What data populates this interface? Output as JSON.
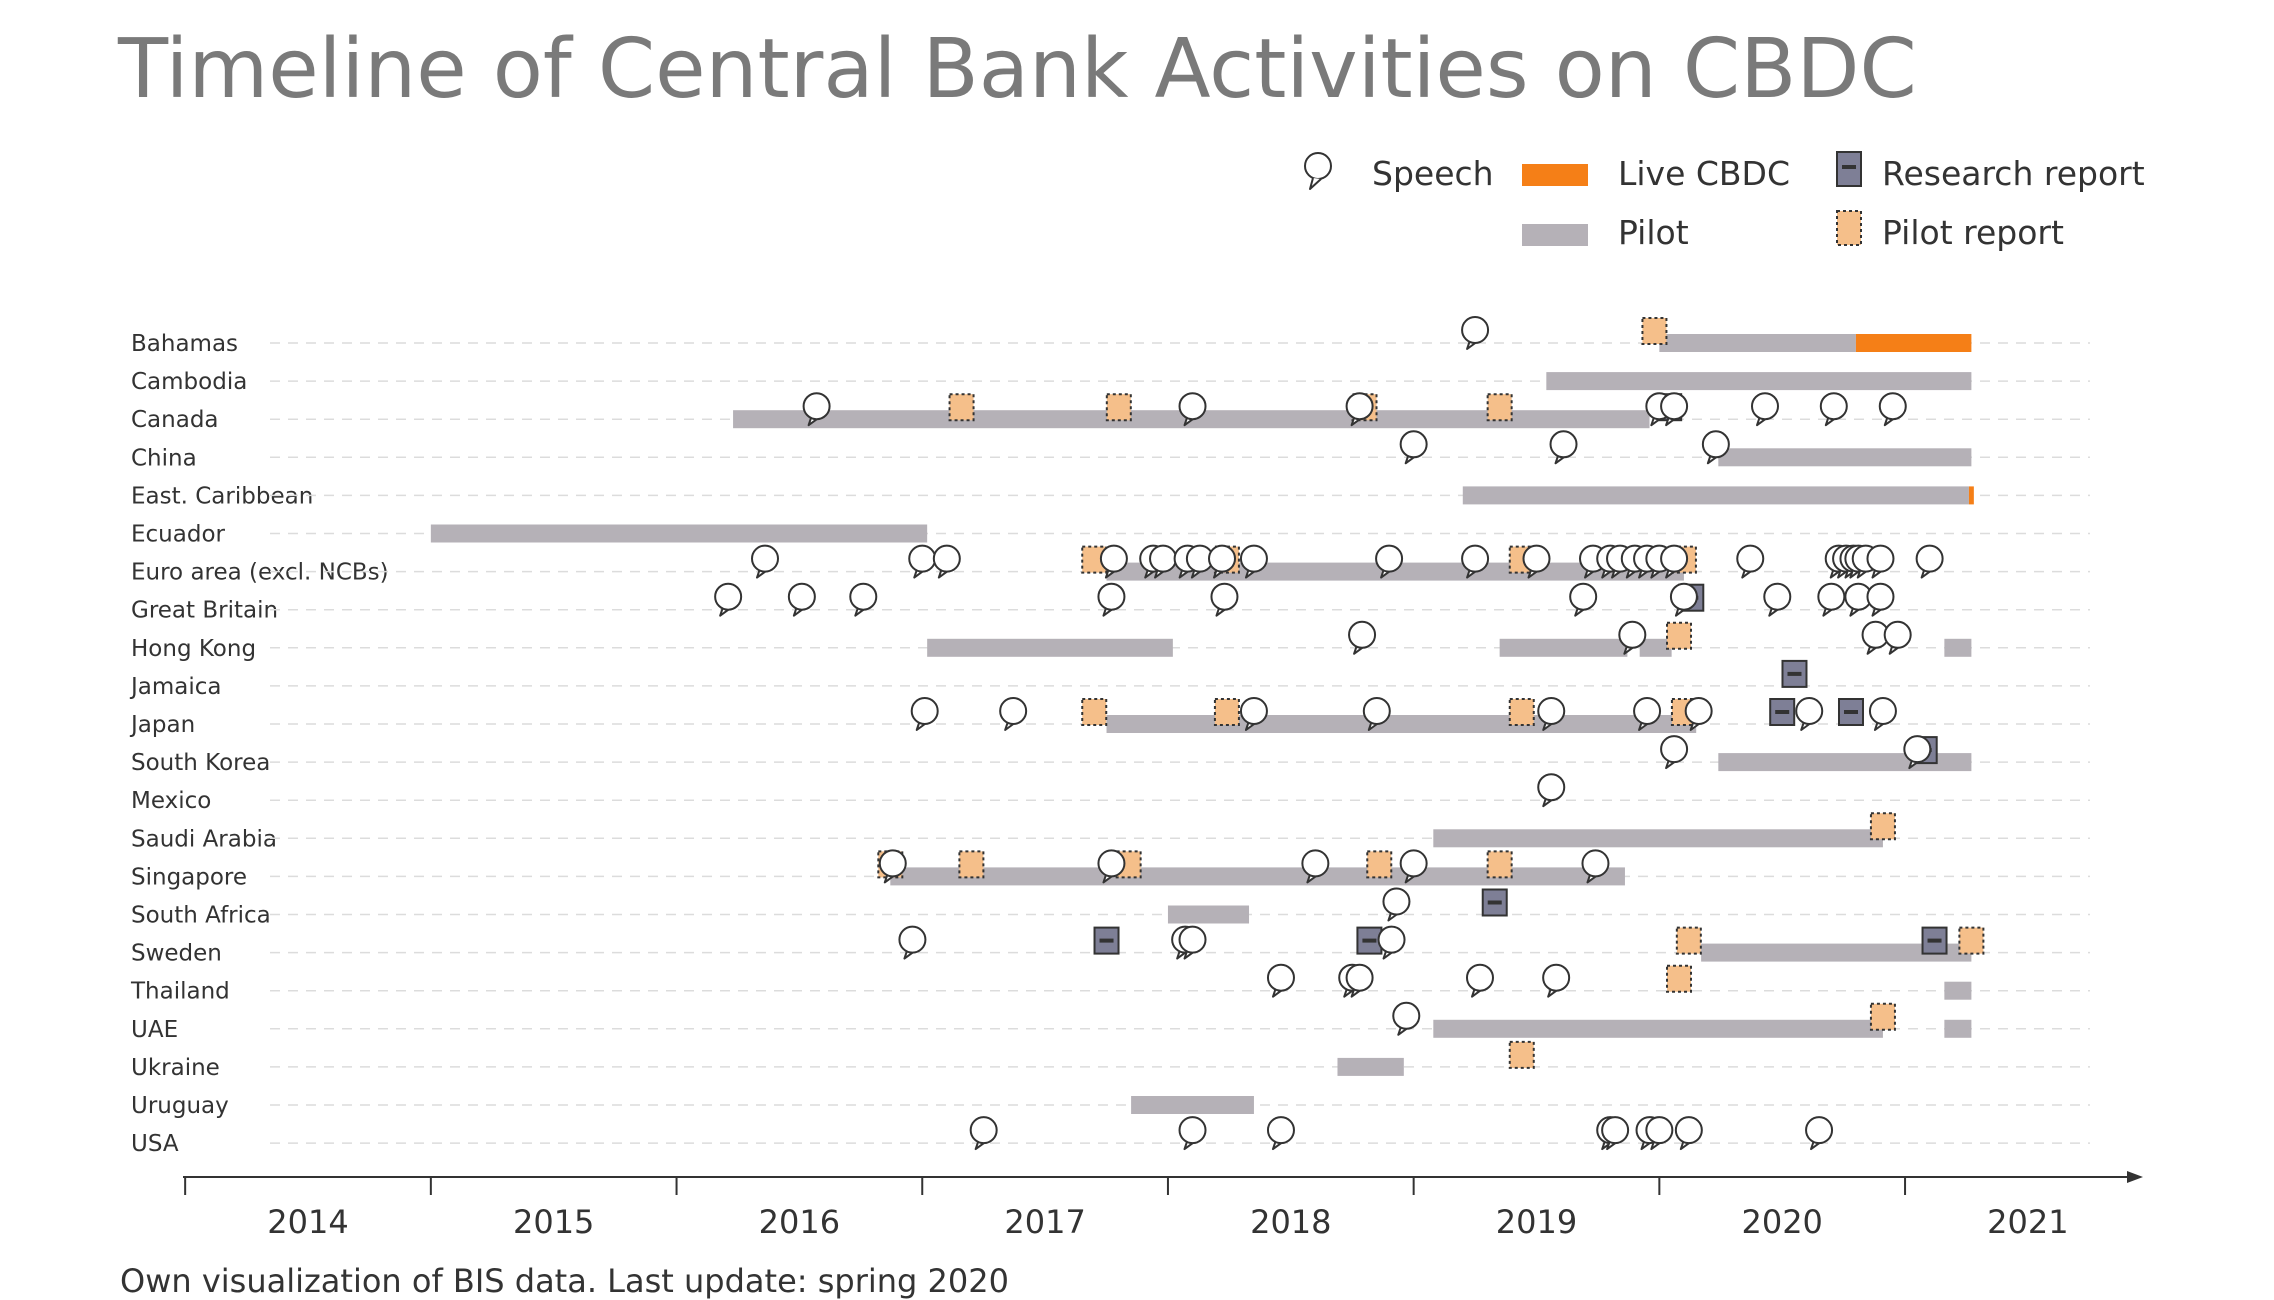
{
  "title": "Timeline of Central Bank Activities on CBDC",
  "footer": "Own visualization of BIS data. Last update: spring 2020",
  "legend": {
    "speech": "Speech",
    "live": "Live CBDC",
    "research": "Research report",
    "pilot": "Pilot",
    "pilot_report": "Pilot report"
  },
  "colors": {
    "live": "#f57f17",
    "pilot": "#b5b1b7",
    "research_fill": "#7e7f96",
    "pilot_report_fill": "#f5bf8a",
    "marker_stroke": "#333333",
    "title": "#7a7a7a"
  },
  "chart_data": {
    "type": "timeline",
    "x_range": [
      2013.5,
      2021.0
    ],
    "x_ticks": [
      "2014",
      "2015",
      "2016",
      "2017",
      "2018",
      "2019",
      "2020",
      "2021"
    ],
    "rows": [
      {
        "label": "Bahamas",
        "pilot": [
          [
            2019.5,
            2020.3
          ]
        ],
        "live": [
          [
            2020.3,
            2020.77
          ]
        ],
        "speech": [
          2018.75
        ],
        "research": [],
        "pilot_report": [
          2019.48
        ]
      },
      {
        "label": "Cambodia",
        "pilot": [
          [
            2019.04,
            2020.77
          ]
        ],
        "live": [],
        "speech": [],
        "research": [],
        "pilot_report": []
      },
      {
        "label": "Canada",
        "pilot": [
          [
            2015.73,
            2019.46
          ]
        ],
        "live": [],
        "speech": [
          2016.07,
          2017.6,
          2018.28,
          2019.5,
          2019.56,
          2019.93,
          2020.21,
          2020.45
        ],
        "research": [
          2019.54
        ],
        "pilot_report": [
          2016.66,
          2017.3,
          2018.3,
          2018.85
        ]
      },
      {
        "label": "China",
        "pilot": [
          [
            2019.74,
            2020.77
          ]
        ],
        "live": [],
        "speech": [
          2018.5,
          2019.11,
          2019.73
        ],
        "research": [],
        "pilot_report": []
      },
      {
        "label": "East. Caribbean",
        "pilot": [
          [
            2018.7,
            2020.76
          ]
        ],
        "live": [
          [
            2020.76,
            2020.78
          ]
        ],
        "speech": [],
        "research": [],
        "pilot_report": []
      },
      {
        "label": "Ecuador",
        "pilot": [
          [
            2014.5,
            2016.52
          ]
        ],
        "live": [],
        "speech": [],
        "research": [],
        "pilot_report": []
      },
      {
        "label": "Euro area (excl. NCBs)",
        "pilot": [
          [
            2017.25,
            2019.6
          ]
        ],
        "live": [],
        "speech": [
          2015.86,
          2016.5,
          2016.6,
          2017.28,
          2017.44,
          2017.48,
          2017.58,
          2017.63,
          2017.72,
          2017.85,
          2018.4,
          2018.75,
          2019.0,
          2019.23,
          2019.3,
          2019.34,
          2019.4,
          2019.45,
          2019.5,
          2019.56,
          2019.87,
          2020.23,
          2020.26,
          2020.29,
          2020.31,
          2020.34,
          2020.4,
          2020.6
        ],
        "research": [],
        "pilot_report": [
          2017.2,
          2017.74,
          2018.94,
          2019.6
        ]
      },
      {
        "label": "Great Britain",
        "pilot": [],
        "live": [],
        "speech": [
          2015.71,
          2016.01,
          2016.26,
          2017.27,
          2017.73,
          2019.19,
          2019.6,
          2019.98,
          2020.2,
          2020.31,
          2020.4
        ],
        "research": [
          2019.63
        ],
        "pilot_report": []
      },
      {
        "label": "Hong Kong",
        "pilot": [
          [
            2016.52,
            2017.52
          ],
          [
            2018.85,
            2019.37
          ],
          [
            2019.42,
            2019.55
          ],
          [
            2020.66,
            2020.77
          ]
        ],
        "live": [],
        "speech": [
          2018.29,
          2019.39,
          2020.38,
          2020.47
        ],
        "research": [],
        "pilot_report": [
          2019.58
        ]
      },
      {
        "label": "Jamaica",
        "pilot": [],
        "live": [],
        "speech": [],
        "research": [
          2020.05
        ],
        "pilot_report": []
      },
      {
        "label": "Japan",
        "pilot": [
          [
            2017.25,
            2019.65
          ]
        ],
        "live": [],
        "speech": [
          2016.51,
          2016.87,
          2017.85,
          2018.35,
          2019.06,
          2019.45,
          2019.66,
          2020.11,
          2020.41
        ],
        "research": [
          2020.0,
          2020.28
        ],
        "pilot_report": [
          2017.2,
          2017.74,
          2018.94,
          2019.6
        ]
      },
      {
        "label": "South Korea",
        "pilot": [
          [
            2019.74,
            2020.77
          ]
        ],
        "live": [],
        "speech": [
          2019.56,
          2020.55
        ],
        "research": [
          2020.58
        ],
        "pilot_report": []
      },
      {
        "label": "Mexico",
        "pilot": [],
        "live": [],
        "speech": [
          2019.06
        ],
        "research": [],
        "pilot_report": []
      },
      {
        "label": "Saudi Arabia",
        "pilot": [
          [
            2018.58,
            2020.41
          ]
        ],
        "live": [],
        "speech": [],
        "research": [],
        "pilot_report": [
          2020.41
        ]
      },
      {
        "label": "Singapore",
        "pilot": [
          [
            2016.37,
            2019.36
          ]
        ],
        "live": [],
        "speech": [
          2016.38,
          2017.27,
          2018.1,
          2018.5,
          2019.24
        ],
        "research": [],
        "pilot_report": [
          2016.37,
          2016.7,
          2017.34,
          2018.36,
          2018.85
        ]
      },
      {
        "label": "South Africa",
        "pilot": [
          [
            2017.5,
            2017.83
          ]
        ],
        "live": [],
        "speech": [
          2018.43
        ],
        "research": [
          2018.83
        ],
        "pilot_report": []
      },
      {
        "label": "Sweden",
        "pilot": [
          [
            2019.67,
            2020.77
          ]
        ],
        "live": [],
        "speech": [
          2016.46,
          2017.57,
          2017.6,
          2018.41
        ],
        "research": [
          2017.25,
          2018.32,
          2020.62
        ],
        "pilot_report": [
          2019.62,
          2020.77
        ]
      },
      {
        "label": "Thailand",
        "pilot": [
          [
            2020.66,
            2020.77
          ]
        ],
        "live": [],
        "speech": [
          2017.96,
          2018.25,
          2018.28,
          2018.77,
          2019.08
        ],
        "research": [],
        "pilot_report": [
          2019.58
        ]
      },
      {
        "label": "UAE",
        "pilot": [
          [
            2018.58,
            2020.41
          ],
          [
            2020.66,
            2020.77
          ]
        ],
        "live": [],
        "speech": [
          2018.47
        ],
        "research": [],
        "pilot_report": [
          2020.41
        ]
      },
      {
        "label": "Ukraine",
        "pilot": [
          [
            2018.19,
            2018.46
          ]
        ],
        "live": [],
        "speech": [],
        "research": [],
        "pilot_report": [
          2018.94
        ]
      },
      {
        "label": "Uruguay",
        "pilot": [
          [
            2017.35,
            2017.85
          ]
        ],
        "live": [],
        "speech": [],
        "research": [],
        "pilot_report": []
      },
      {
        "label": "USA",
        "pilot": [],
        "live": [],
        "speech": [
          2016.75,
          2017.6,
          2017.96,
          2019.3,
          2019.32,
          2019.46,
          2019.5,
          2019.62,
          2020.15
        ],
        "research": [],
        "pilot_report": []
      }
    ]
  }
}
